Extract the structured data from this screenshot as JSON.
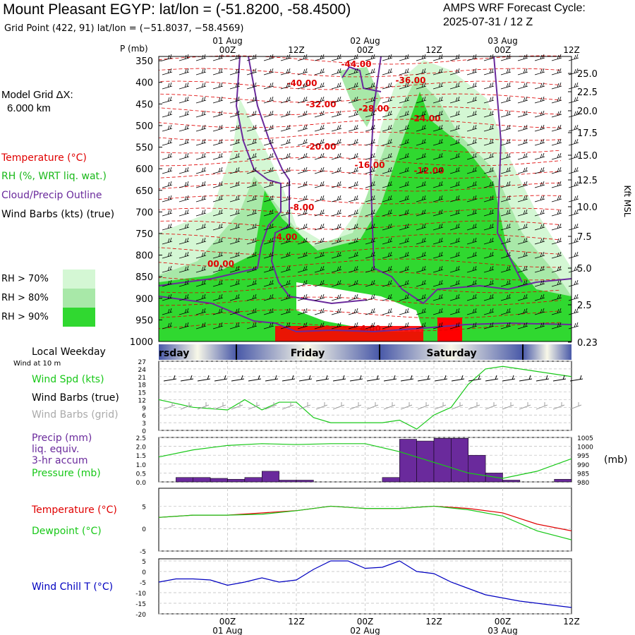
{
  "header": {
    "title": "Mount Pleasant EGYP:  lat/lon = (-51.8200, -58.4500)",
    "grid_point": "Grid Point (422, 91) lat/lon = (−51.8037, −58.4569)",
    "cycle_line1": "AMPS WRF Forecast Cycle:",
    "cycle_line2": "2025-07-31 / 12  Z"
  },
  "side": {
    "model_grid_label": "Model Grid ΔX:",
    "model_grid_value": "6.000 km",
    "legend_temperature": "Temperature (°C)",
    "legend_rh": "RH (%, WRT liq. wat.)",
    "legend_cloud": "Cloud/Precip Outline",
    "legend_wind": "Wind Barbs (kts) (true)",
    "rh_70": "RH > 70%",
    "rh_80": "RH > 80%",
    "rh_90": "RH > 90%",
    "local_weekday": "Local Weekday",
    "wind_at_10m": "Wind at 10 m"
  },
  "colors": {
    "rh70": "#d4f7d4",
    "rh80": "#a8e8a8",
    "rh90": "#30d830",
    "temperature": "#e00000",
    "dewpoint": "#18c818",
    "cloud_outline": "#6a2a9c",
    "precip_bar": "#6a2a9c",
    "pressure": "#18c818",
    "wind_chill": "#0000c0",
    "wind_speed": "#18c818",
    "wind_barb_grid": "#a0a0a0"
  },
  "time_axis": {
    "top_ticks": [
      {
        "label": "00Z",
        "date": "01 Aug"
      },
      {
        "label": "12Z",
        "date": ""
      },
      {
        "label": "00Z",
        "date": "02 Aug"
      },
      {
        "label": "12Z",
        "date": ""
      },
      {
        "label": "00Z",
        "date": "03 Aug"
      },
      {
        "label": "12Z",
        "date": ""
      }
    ],
    "weekdays": [
      "rsday",
      "Friday",
      "Saturday"
    ]
  },
  "chart_data": [
    {
      "type": "heatmap",
      "name": "cross-section",
      "ylabel_left": "P (mb)",
      "ylabel_right": "Kft MSL",
      "y_ticks_left": [
        "350",
        "400",
        "450",
        "500",
        "550",
        "600",
        "650",
        "700",
        "750",
        "800",
        "850",
        "900",
        "950",
        "1000"
      ],
      "y_ticks_right": [
        "25.0",
        "22.5",
        "20.0",
        "17.5",
        "15.0",
        "12.5",
        "10.0",
        "7.5",
        "5.0",
        "2.5",
        "0.23"
      ],
      "temperature_contour_labels": [
        "-44.00",
        "-40.00",
        "-36.00",
        "-32.00",
        "-28.00",
        "-24.00",
        "-20.00",
        "-16.00",
        "-12.00",
        "-8.00",
        "-4.00",
        "00.00",
        "4.00"
      ]
    },
    {
      "type": "line",
      "name": "wind-speed",
      "legend": [
        "Wind Spd (kts)",
        "Wind Barbs (true)",
        "Wind Barbs (grid)"
      ],
      "y_ticks": [
        "27",
        "24",
        "21",
        "18",
        "15",
        "12",
        "9",
        "6",
        "3",
        "0"
      ],
      "ylim": [
        0,
        27
      ],
      "x_hours": [
        -12,
        -6,
        0,
        3,
        6,
        9,
        12,
        15,
        18,
        21,
        24,
        27,
        30,
        33,
        36,
        39,
        42,
        45,
        48,
        51,
        54,
        57,
        60
      ],
      "values": [
        12,
        9,
        8,
        12,
        8,
        11,
        11,
        5,
        3,
        3,
        3,
        3,
        4,
        0.5,
        6,
        9,
        18,
        24,
        25,
        24,
        23,
        22,
        21
      ]
    },
    {
      "type": "bar",
      "name": "precip-pressure",
      "legend": [
        "Precip (mm)",
        "liq. equiv.",
        "3-hr accum",
        "Pressure (mb)"
      ],
      "y_ticks_left": [
        "2.5",
        "2.0",
        "1.5",
        "1.0",
        "0.5",
        "0.0"
      ],
      "y_ticks_right": [
        "1005",
        "1000",
        "995",
        "990",
        "985",
        "980"
      ],
      "right_unit": "(mb)",
      "ylim": [
        0,
        2.5
      ],
      "ylim_right": [
        980,
        1005
      ],
      "precip_bins_start_hour": [
        -12,
        -9,
        -6,
        -3,
        0,
        3,
        6,
        9,
        12,
        15,
        18,
        21,
        24,
        27,
        30,
        33,
        36,
        39,
        42,
        45,
        48,
        51,
        54,
        57
      ],
      "precip": [
        0,
        0.25,
        0.25,
        0.2,
        0.15,
        0.25,
        0.6,
        0.1,
        0.1,
        0,
        0,
        0,
        0,
        0.25,
        2.4,
        2.3,
        2.45,
        2.45,
        1.5,
        0.5,
        0.1,
        0,
        0,
        0.15
      ],
      "pressure_hours": [
        -12,
        -6,
        0,
        6,
        12,
        18,
        24,
        30,
        36,
        42,
        48,
        54,
        60
      ],
      "pressure": [
        994,
        998,
        1000.5,
        1001.5,
        1001,
        1001.5,
        1001.5,
        997,
        991,
        985,
        982,
        986,
        993
      ]
    },
    {
      "type": "line",
      "name": "temperature-dewpoint",
      "series_names": [
        "Temperature (°C)",
        "Dewpoint (°C)"
      ],
      "y_ticks": [
        "5",
        "0",
        "-5"
      ],
      "ylim": [
        -5,
        9
      ],
      "hours": [
        -12,
        -6,
        0,
        6,
        12,
        18,
        24,
        30,
        36,
        42,
        48,
        54,
        60
      ],
      "temperature": [
        2.5,
        3,
        3,
        3.5,
        4,
        5,
        4.5,
        4.5,
        5,
        4.5,
        3.5,
        1,
        -0.5
      ],
      "dewpoint": [
        2.5,
        3,
        3,
        3.2,
        4,
        5,
        4.5,
        4.5,
        5,
        4.2,
        2.8,
        -0.5,
        -2.5
      ]
    },
    {
      "type": "line",
      "name": "wind-chill",
      "series_names": [
        "Wind Chill T (°C)"
      ],
      "y_ticks": [
        "5",
        "0",
        "-5",
        "-10",
        "-15",
        "-20"
      ],
      "ylim": [
        -20,
        6
      ],
      "hours": [
        -12,
        -9,
        -6,
        -3,
        0,
        3,
        6,
        9,
        12,
        15,
        18,
        21,
        24,
        27,
        30,
        33,
        36,
        39,
        42,
        45,
        48,
        51,
        54,
        57,
        60
      ],
      "values": [
        -5,
        -3.5,
        -3.5,
        -4,
        -6.5,
        -5,
        -3,
        -5,
        -4,
        1,
        5,
        5,
        1.5,
        2,
        5,
        0,
        -1,
        -5,
        -8,
        -11,
        -12.5,
        -14,
        -15,
        -16,
        -17
      ]
    }
  ]
}
